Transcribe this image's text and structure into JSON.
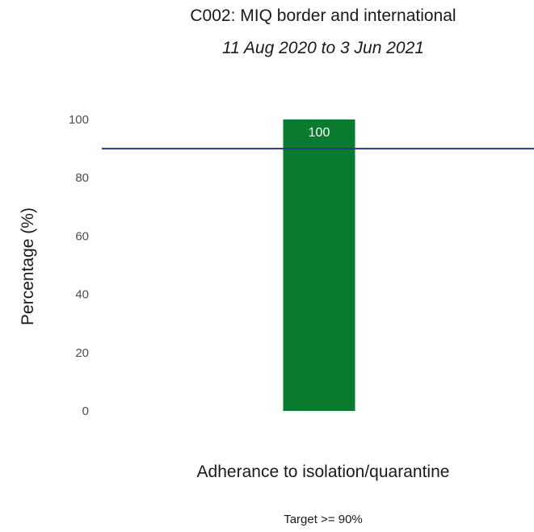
{
  "chart_data": {
    "type": "bar",
    "title": "C002: MIQ border and international",
    "subtitle": "11 Aug 2020 to 3 Jun 2021",
    "categories": [
      "Adherance to isolation/quarantine"
    ],
    "values": [
      100
    ],
    "data_labels": [
      "100"
    ],
    "xlabel": "Adherance to isolation/quarantine",
    "ylabel": "Percentage (%)",
    "ylim": [
      0,
      100
    ],
    "yticks": [
      0,
      20,
      40,
      60,
      80,
      100
    ],
    "ytick_labels": [
      "0",
      "20",
      "40",
      "60",
      "80",
      "100"
    ],
    "target_line": 90,
    "caption": "Target >= 90%",
    "grid": false,
    "colors": {
      "bar": "#0a7a2f",
      "target_line": "#2b3a7a"
    }
  }
}
